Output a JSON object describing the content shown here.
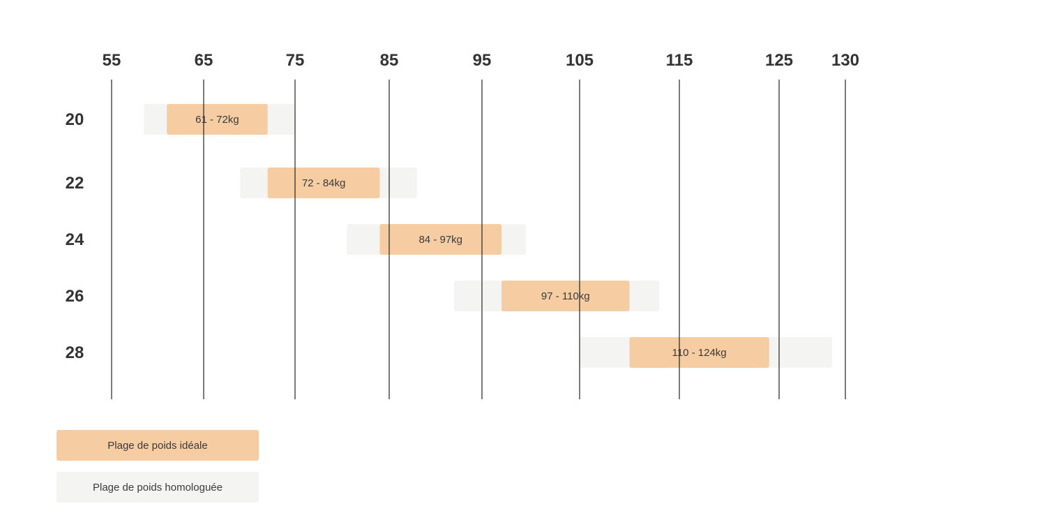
{
  "chart_data": {
    "type": "bar",
    "orientation": "horizontal-range",
    "x_ticks": [
      55,
      65,
      75,
      85,
      95,
      105,
      115,
      125,
      130
    ],
    "rows": [
      {
        "label": "20",
        "approved": [
          58.5,
          75
        ],
        "ideal": [
          61,
          72
        ],
        "ideal_label": "61 - 72kg"
      },
      {
        "label": "22",
        "approved": [
          69,
          88
        ],
        "ideal": [
          72,
          84
        ],
        "ideal_label": "72 - 84kg"
      },
      {
        "label": "24",
        "approved": [
          80.5,
          99.5
        ],
        "ideal": [
          84,
          97
        ],
        "ideal_label": "84 - 97kg"
      },
      {
        "label": "26",
        "approved": [
          92,
          113
        ],
        "ideal": [
          97,
          110
        ],
        "ideal_label": "97 - 110kg"
      },
      {
        "label": "28",
        "approved": [
          105,
          129
        ],
        "ideal": [
          110,
          124
        ],
        "ideal_label": "110 - 124kg"
      }
    ],
    "legend_placement": "bottom-left",
    "grid": true
  },
  "legend": {
    "ideal": "Plage de poids idéale",
    "approved": "Plage de poids homologuée"
  },
  "colors": {
    "ideal": "#F6CCA2",
    "approved": "#F4F4F2",
    "grid": "#222222"
  }
}
